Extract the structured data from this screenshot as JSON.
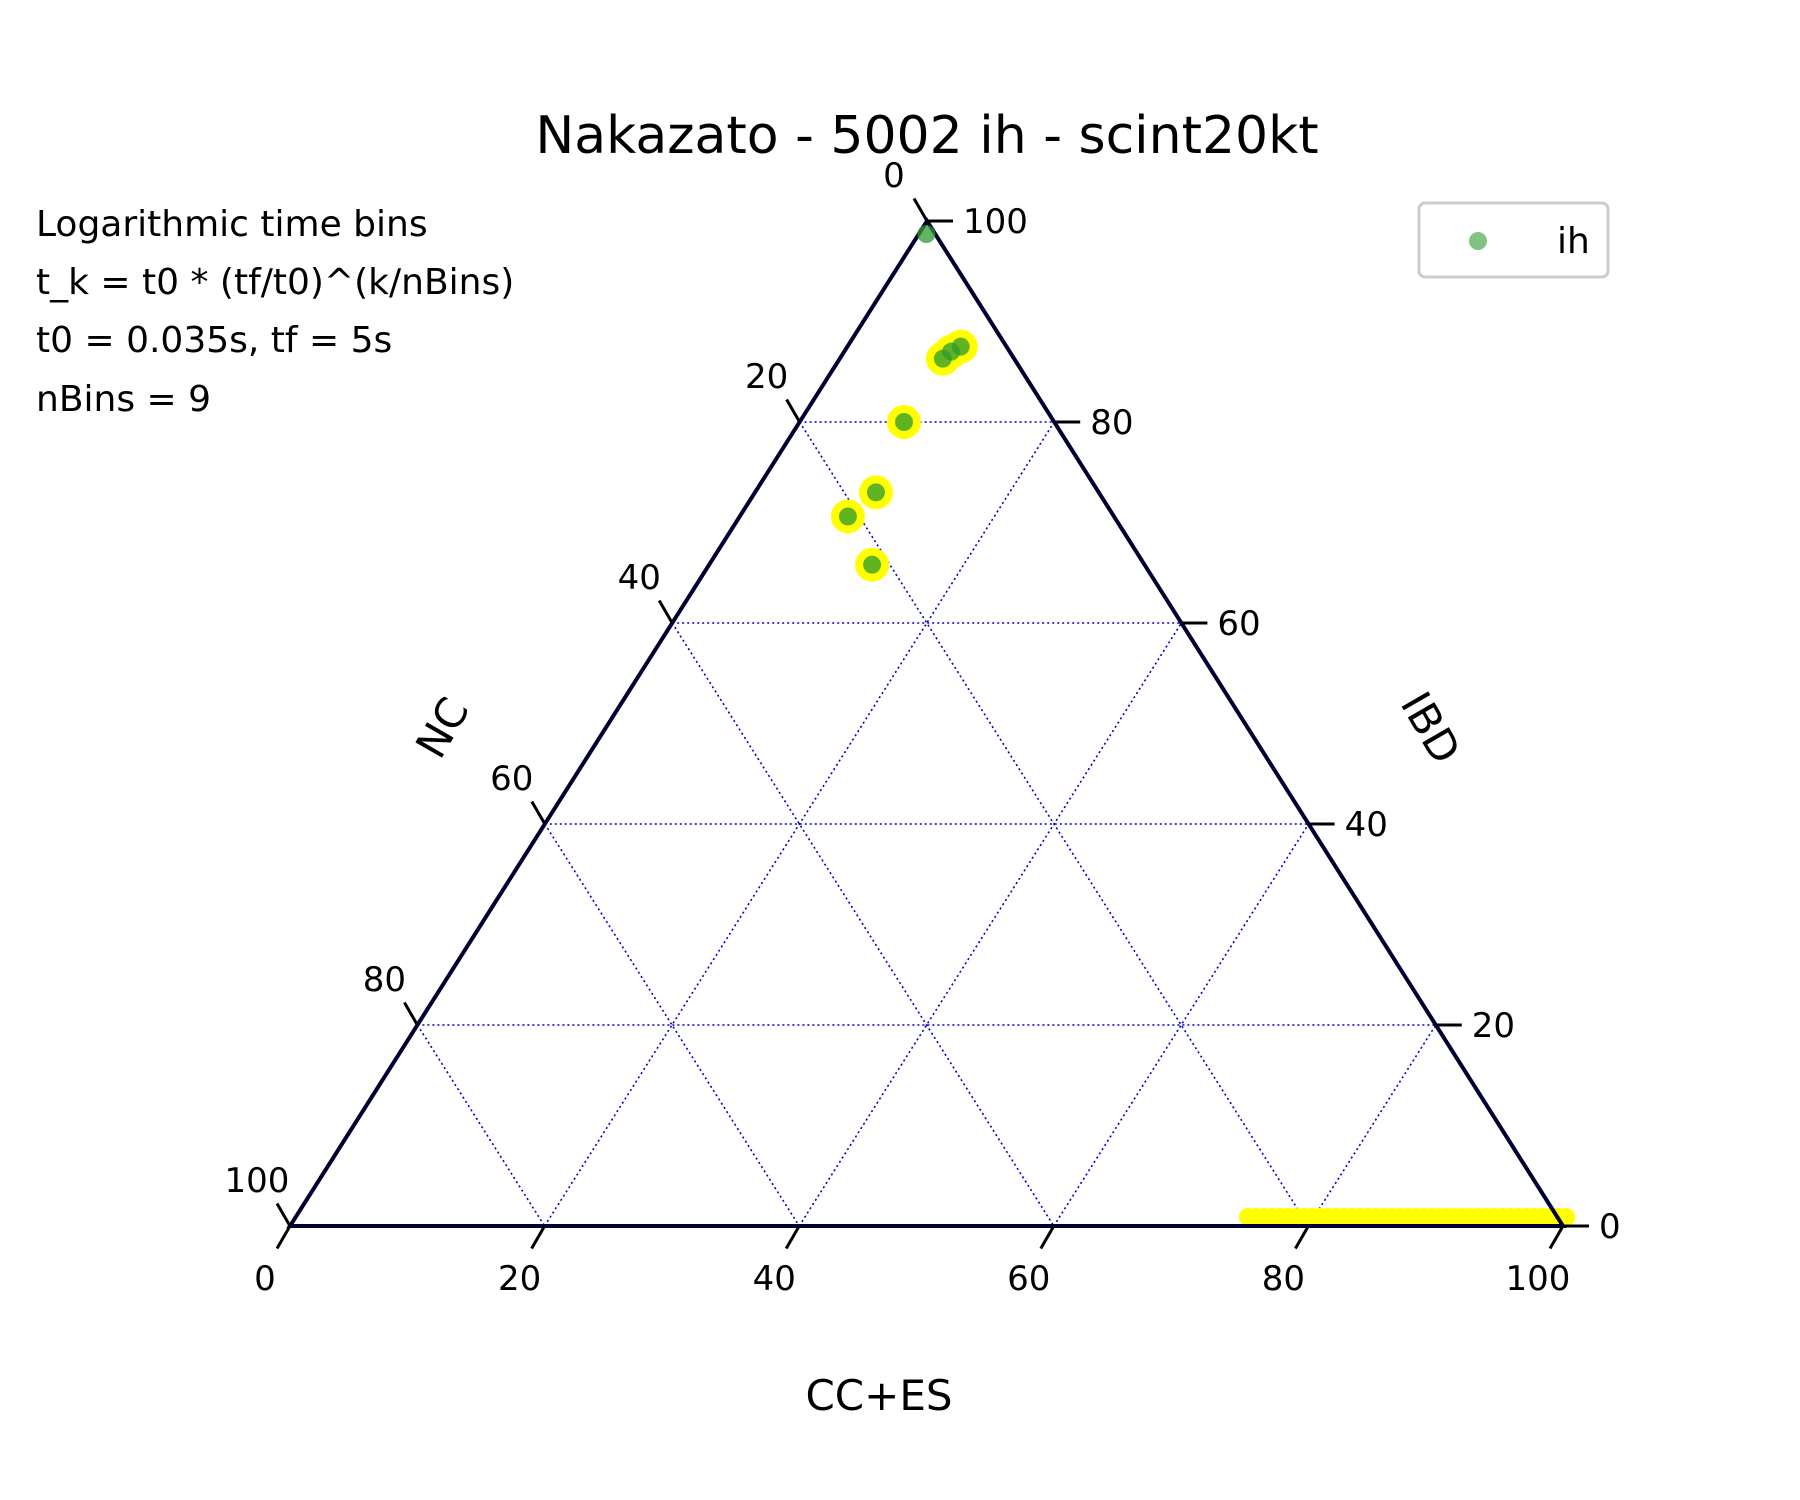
{
  "chart_data": {
    "type": "scatter",
    "subtype": "ternary",
    "title": "Nakazato - 5002 ih - scint20kt",
    "annotation": [
      "Logarithmic time bins",
      "t_k = t0 * (tf/t0)^(k/nBins)",
      "t0 = 0.035s, tf = 5s",
      "nBins = 9"
    ],
    "axes": {
      "bottom": {
        "label": "CC+ES",
        "ticks": [
          "0",
          "20",
          "40",
          "60",
          "80",
          "100"
        ]
      },
      "right": {
        "label": "IBD",
        "ticks": [
          "0",
          "20",
          "40",
          "60",
          "80",
          "100"
        ]
      },
      "left": {
        "label": "NC",
        "ticks": [
          "0",
          "20",
          "40",
          "60",
          "80",
          "100"
        ]
      },
      "range": [
        0,
        100
      ]
    },
    "grid": true,
    "gridlines": [
      20,
      40,
      60,
      80
    ],
    "legend": {
      "position": "top-right",
      "entries": [
        "ih"
      ]
    },
    "colors": {
      "triangle": "#000033",
      "grid": "#0000cc",
      "points": "#2e9a2e",
      "uncertainty": "#ffff00"
    },
    "series": [
      {
        "name": "ih",
        "points": [
          {
            "ccs": 0.6,
            "ibd": 98.7,
            "nc": 0.7
          },
          {
            "ccs": 8.9,
            "ibd": 87.5,
            "nc": 3.6
          },
          {
            "ccs": 8.4,
            "ibd": 87.0,
            "nc": 4.6
          },
          {
            "ccs": 8.1,
            "ibd": 86.3,
            "nc": 5.6
          },
          {
            "ccs": 8.2,
            "ibd": 80.0,
            "nc": 11.8
          },
          {
            "ccs": 9.5,
            "ibd": 73.0,
            "nc": 17.5
          },
          {
            "ccs": 8.5,
            "ibd": 70.6,
            "nc": 20.9
          },
          {
            "ccs": 12.8,
            "ibd": 65.8,
            "nc": 21.4
          }
        ]
      }
    ],
    "uncertainty_band": {
      "ccs_from": 75,
      "ccs_to": 100,
      "ibd": 0.5
    }
  }
}
